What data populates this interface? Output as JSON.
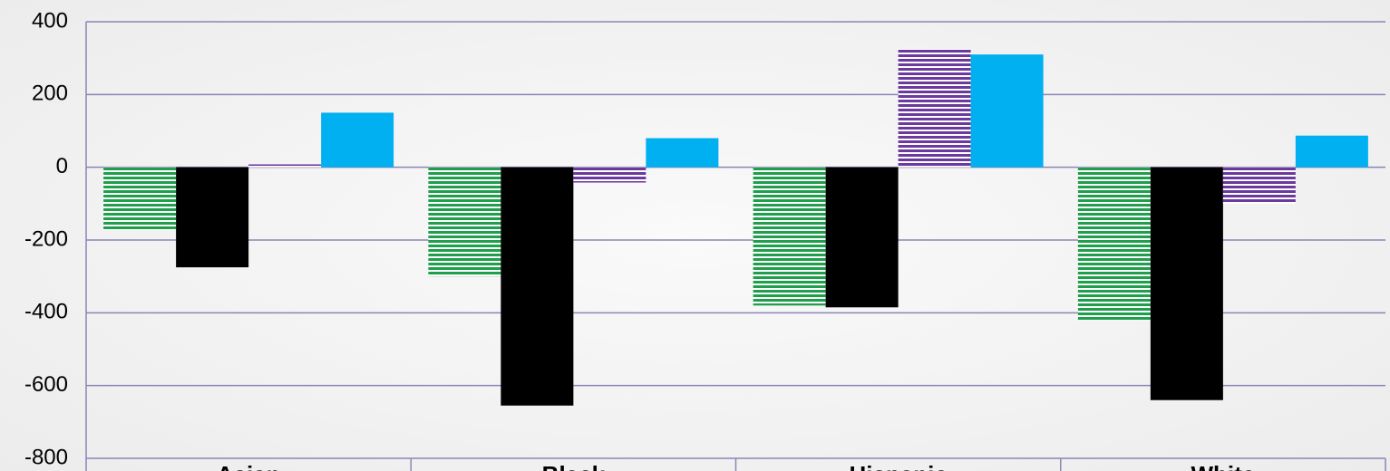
{
  "chart_data": {
    "type": "bar",
    "categories": [
      "Asian",
      "Black",
      "Hispanic",
      "White"
    ],
    "series": [
      {
        "color": "#1f9e4b",
        "hatch": true,
        "values": [
          -172,
          -300,
          -380,
          -420
        ]
      },
      {
        "color": "#000000",
        "hatch": false,
        "values": [
          -275,
          -655,
          -385,
          -640
        ]
      },
      {
        "color": "#6b3a9e",
        "hatch": true,
        "values": [
          8,
          -42,
          325,
          -100
        ]
      },
      {
        "color": "#00b0f0",
        "hatch": false,
        "values": [
          150,
          80,
          310,
          87
        ]
      }
    ],
    "ylim": [
      -800,
      400
    ],
    "yticks": [
      -800,
      -600,
      -400,
      -200,
      0,
      200,
      400
    ],
    "grid": true
  }
}
